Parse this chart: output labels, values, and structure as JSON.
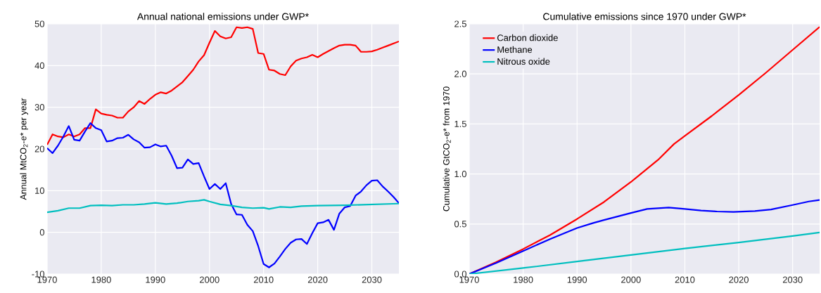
{
  "chart_data": [
    {
      "type": "line",
      "title": "Annual national emissions under GWP*",
      "ylabel": "Annual MtCO$_{2}$-e* per year",
      "xlim": [
        1970,
        2035
      ],
      "ylim": [
        -10,
        50
      ],
      "xticks": [
        1970,
        1980,
        1990,
        2000,
        2010,
        2020,
        2030
      ],
      "yticks": [
        -10,
        0,
        10,
        20,
        30,
        40,
        50
      ],
      "grid": true,
      "series": [
        {
          "color": "#ff0000",
          "x": [
            1970,
            1971,
            1972,
            1973,
            1974,
            1975,
            1976,
            1977,
            1978,
            1979,
            1980,
            1981,
            1982,
            1983,
            1984,
            1985,
            1986,
            1987,
            1988,
            1989,
            1990,
            1991,
            1992,
            1993,
            1994,
            1995,
            1996,
            1997,
            1998,
            1999,
            2000,
            2001,
            2002,
            2003,
            2004,
            2005,
            2006,
            2007,
            2008,
            2009,
            2010,
            2011,
            2012,
            2013,
            2014,
            2015,
            2016,
            2017,
            2018,
            2019,
            2020,
            2021,
            2022,
            2023,
            2024,
            2025,
            2026,
            2027,
            2028,
            2029,
            2030,
            2031,
            2032,
            2033,
            2034,
            2035
          ],
          "values": [
            21,
            23.5,
            23,
            22.8,
            23.5,
            23,
            23.5,
            25,
            25,
            29.5,
            28.5,
            28.2,
            28,
            27.5,
            27.5,
            29,
            30,
            31.5,
            30.8,
            32,
            33,
            33.6,
            33.3,
            34,
            35,
            36,
            37.5,
            39,
            41,
            42.5,
            45.5,
            48.3,
            47,
            46.5,
            46.8,
            49.2,
            49,
            49.2,
            48.8,
            43,
            42.8,
            39,
            38.8,
            38,
            37.7,
            39.8,
            41.2,
            41.7,
            42,
            42.6,
            42,
            42.8,
            43.5,
            44.2,
            44.8,
            45,
            45,
            44.8,
            43.3,
            43.3,
            43.4,
            43.8,
            44.3,
            44.8,
            45.3,
            45.8
          ]
        },
        {
          "color": "#0000ff",
          "x": [
            1970,
            1971,
            1972,
            1973,
            1974,
            1975,
            1976,
            1977,
            1978,
            1979,
            1980,
            1981,
            1982,
            1983,
            1984,
            1985,
            1986,
            1987,
            1988,
            1989,
            1990,
            1991,
            1992,
            1993,
            1994,
            1995,
            1996,
            1997,
            1998,
            1999,
            2000,
            2001,
            2002,
            2003,
            2004,
            2005,
            2006,
            2007,
            2008,
            2009,
            2010,
            2011,
            2012,
            2013,
            2014,
            2015,
            2016,
            2017,
            2018,
            2019,
            2020,
            2021,
            2022,
            2023,
            2024,
            2025,
            2026,
            2027,
            2028,
            2029,
            2030,
            2031,
            2032,
            2033,
            2034,
            2035
          ],
          "values": [
            20.2,
            19,
            20.8,
            23,
            25.5,
            22.2,
            22,
            24.2,
            26.2,
            25,
            24.5,
            21.8,
            22,
            22.6,
            22.7,
            23.4,
            22.3,
            21.6,
            20.3,
            20.4,
            21.1,
            20.6,
            20.8,
            18.4,
            15.4,
            15.5,
            17.5,
            16.4,
            16.6,
            13.4,
            10.4,
            11.6,
            10.4,
            11.8,
            6.8,
            4.3,
            4.2,
            1.8,
            0.3,
            -3.3,
            -7.6,
            -8.4,
            -7.5,
            -5.8,
            -4,
            -2.5,
            -1.7,
            -1.6,
            -2.8,
            -0.2,
            2.2,
            2.4,
            3,
            0.6,
            4.5,
            6,
            6.3,
            8.8,
            9.8,
            11.3,
            12.4,
            12.5,
            11,
            9.8,
            8.5,
            7
          ]
        },
        {
          "color": "#00bfbf",
          "x": [
            1970,
            1972,
            1974,
            1976,
            1978,
            1980,
            1982,
            1984,
            1986,
            1988,
            1990,
            1992,
            1994,
            1996,
            1998,
            1999,
            2000,
            2002,
            2004,
            2006,
            2008,
            2010,
            2011,
            2013,
            2015,
            2017,
            2020,
            2025,
            2030,
            2035
          ],
          "values": [
            4.8,
            5.2,
            5.8,
            5.8,
            6.4,
            6.5,
            6.4,
            6.6,
            6.6,
            6.8,
            7.1,
            6.8,
            7,
            7.4,
            7.6,
            7.8,
            7.4,
            6.7,
            6.4,
            6,
            5.8,
            5.9,
            5.6,
            6.1,
            6,
            6.3,
            6.4,
            6.5,
            6.7,
            6.9
          ]
        }
      ]
    },
    {
      "type": "line",
      "title": "Cumulative emissions since 1970 under GWP*",
      "ylabel": "Cumulative GtCO$_{2}$-e* from 1970",
      "xlim": [
        1970,
        2035
      ],
      "ylim": [
        0,
        2.5
      ],
      "xticks": [
        1970,
        1980,
        1990,
        2000,
        2010,
        2020,
        2030
      ],
      "yticks": [
        {
          "value": 0,
          "label": "0.0"
        },
        {
          "value": 0.5,
          "label": "0.5"
        },
        {
          "value": 1,
          "label": "1.0"
        },
        {
          "value": 1.5,
          "label": "1.5"
        },
        {
          "value": 2,
          "label": "2.0"
        },
        {
          "value": 2.5,
          "label": "2.5"
        }
      ],
      "grid": true,
      "legend": "top left",
      "series": [
        {
          "name": "Carbon dioxide",
          "color": "#ff0000",
          "x": [
            1970,
            1975,
            1980,
            1985,
            1990,
            1995,
            2000,
            2005,
            2008,
            2010,
            2015,
            2020,
            2025,
            2030,
            2035
          ],
          "values": [
            0,
            0.12,
            0.25,
            0.39,
            0.55,
            0.72,
            0.92,
            1.14,
            1.3,
            1.38,
            1.58,
            1.79,
            2.01,
            2.24,
            2.47
          ]
        },
        {
          "name": "Methane",
          "color": "#0000ff",
          "x": [
            1970,
            1975,
            1980,
            1985,
            1990,
            1993,
            1995,
            2000,
            2003,
            2007,
            2010,
            2013,
            2016,
            2019,
            2023,
            2026,
            2030,
            2033,
            2035
          ],
          "values": [
            0,
            0.11,
            0.23,
            0.35,
            0.46,
            0.51,
            0.54,
            0.61,
            0.65,
            0.665,
            0.65,
            0.635,
            0.625,
            0.62,
            0.63,
            0.645,
            0.69,
            0.725,
            0.74
          ]
        },
        {
          "name": "Nitrous oxide",
          "color": "#00bfbf",
          "x": [
            1970,
            1980,
            1990,
            2000,
            2010,
            2020,
            2030,
            2035
          ],
          "values": [
            0,
            0.06,
            0.125,
            0.19,
            0.255,
            0.315,
            0.38,
            0.415
          ]
        }
      ]
    }
  ]
}
